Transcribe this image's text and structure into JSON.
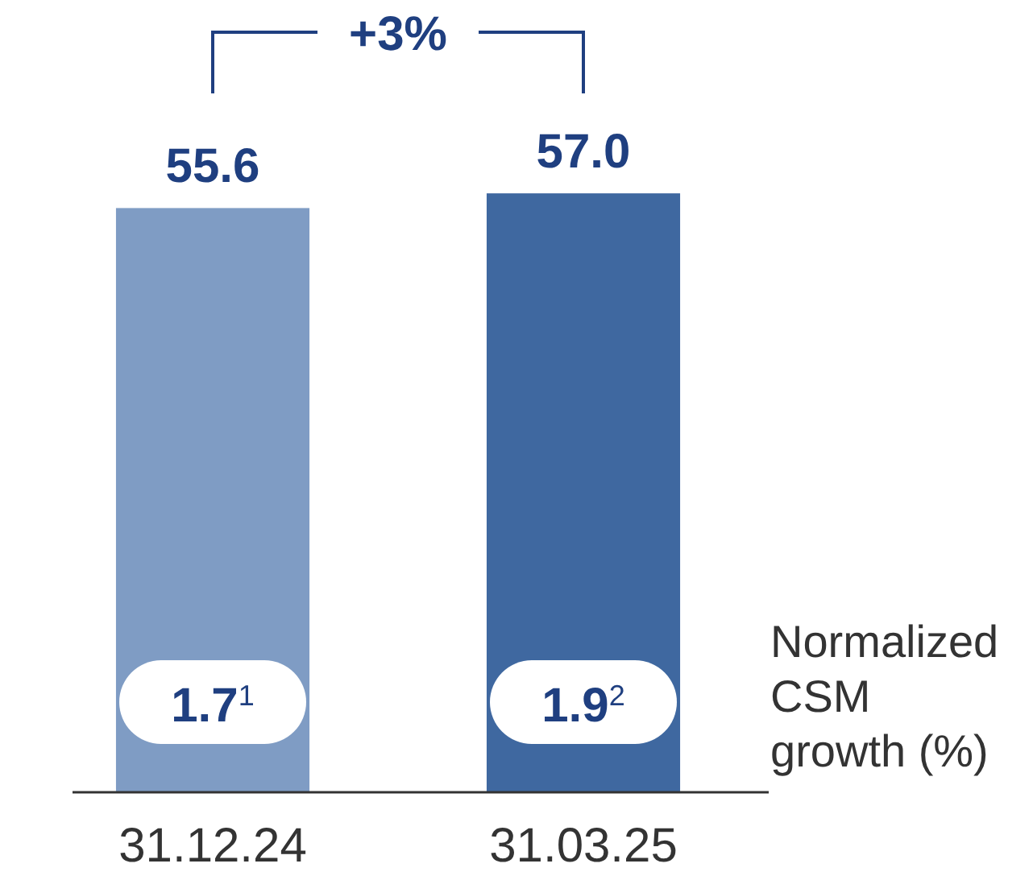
{
  "chart_data": {
    "type": "bar",
    "categories": [
      "31.12.24",
      "31.03.25"
    ],
    "values": [
      55.6,
      57.0
    ],
    "colors": [
      "#7f9cc4",
      "#3f68a0"
    ],
    "value_labels": [
      "55.6",
      "57.0"
    ],
    "tick_labels": "x",
    "annotations": [
      "+3%",
      "1.7$^{1}$",
      "1.9$^{2}$",
      "Normalized CSM growth (%)"
    ]
  }
}
